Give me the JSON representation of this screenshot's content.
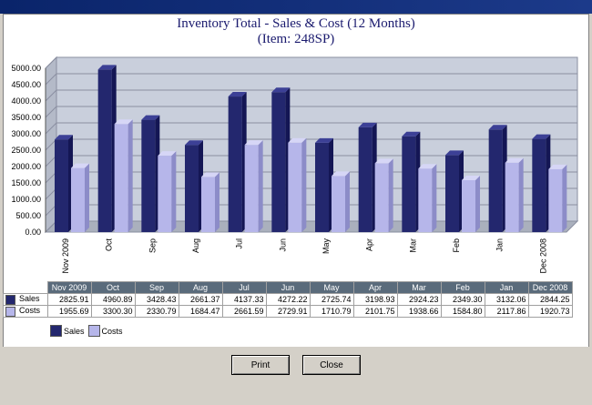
{
  "window": {
    "title": ""
  },
  "chart_title": "Inventory Total - Sales & Cost (12 Months)",
  "chart_subtitle": "(Item: 248SP)",
  "buttons": {
    "print": "Print",
    "close": "Close"
  },
  "colors": {
    "sales": "#23276e",
    "costs": "#b6b6ea",
    "table_header": "#5a6b7b"
  },
  "chart_data": {
    "type": "bar",
    "title": "Inventory Total - Sales & Cost (12 Months)",
    "subtitle": "(Item: 248SP)",
    "categories": [
      "Nov 2009",
      "Oct",
      "Sep",
      "Aug",
      "Jul",
      "Jun",
      "May",
      "Apr",
      "Mar",
      "Feb",
      "Jan",
      "Dec 2008"
    ],
    "series": [
      {
        "name": "Sales",
        "values": [
          2825.91,
          4960.89,
          3428.43,
          2661.37,
          4137.33,
          4272.22,
          2725.74,
          3198.93,
          2924.23,
          2349.3,
          3132.06,
          2844.25
        ]
      },
      {
        "name": "Costs",
        "values": [
          1955.69,
          3300.3,
          2330.79,
          1684.47,
          2661.59,
          2729.91,
          1710.79,
          2101.75,
          1938.66,
          1584.8,
          2117.86,
          1920.73
        ]
      }
    ],
    "ylim": [
      0,
      5000
    ],
    "yticks": [
      "0.00",
      "500.00",
      "1000.00",
      "1500.00",
      "2000.00",
      "2500.00",
      "3000.00",
      "3500.00",
      "4000.00",
      "4500.00",
      "5000.00"
    ],
    "table": {
      "header": [
        "Nov 2009",
        "Oct",
        "Sep",
        "Aug",
        "Jul",
        "Jun",
        "May",
        "Apr",
        "Mar",
        "Feb",
        "Jan",
        "Dec 2008"
      ],
      "rows": [
        {
          "label": "Sales",
          "cells": [
            "2825.91",
            "4960.89",
            "3428.43",
            "2661.37",
            "4137.33",
            "4272.22",
            "2725.74",
            "3198.93",
            "2924.23",
            "2349.30",
            "3132.06",
            "2844.25"
          ]
        },
        {
          "label": "Costs",
          "cells": [
            "1955.69",
            "3300.30",
            "2330.79",
            "1684.47",
            "2661.59",
            "2729.91",
            "1710.79",
            "2101.75",
            "1938.66",
            "1584.80",
            "2117.86",
            "1920.73"
          ]
        }
      ]
    },
    "legend": [
      "Sales",
      "Costs"
    ],
    "legend_position": "bottom-left",
    "grid": true
  }
}
